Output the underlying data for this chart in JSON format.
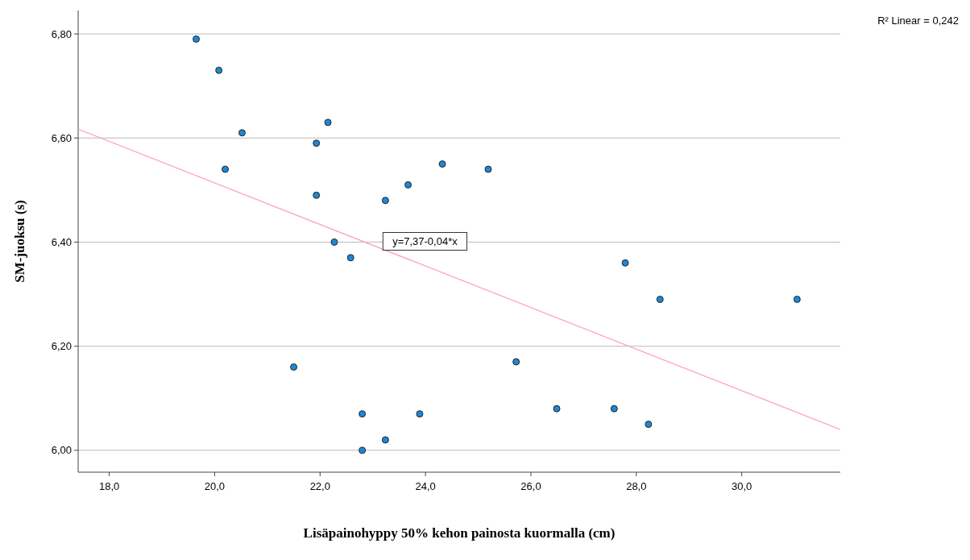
{
  "chart_data": {
    "type": "scatter",
    "xlabel": "Lisäpainohyppy 50% kehon painosta kuormalla (cm)",
    "ylabel": "SM-juoksu (s)",
    "xlim": [
      17.41,
      31.87
    ],
    "ylim": [
      5.958,
      6.845
    ],
    "xticks": [
      {
        "value": 18,
        "label": "18,0"
      },
      {
        "value": 20,
        "label": "20,0"
      },
      {
        "value": 22,
        "label": "22,0"
      },
      {
        "value": 24,
        "label": "24,0"
      },
      {
        "value": 26,
        "label": "26,0"
      },
      {
        "value": 28,
        "label": "28,0"
      },
      {
        "value": 30,
        "label": "30,0"
      }
    ],
    "yticks": [
      {
        "value": 6.0,
        "label": "6,00"
      },
      {
        "value": 6.2,
        "label": "6,20"
      },
      {
        "value": 6.4,
        "label": "6,40"
      },
      {
        "value": 6.6,
        "label": "6,60"
      },
      {
        "value": 6.8,
        "label": "6,80"
      }
    ],
    "grid": "y",
    "series": [
      {
        "marker": "circle",
        "color": "#1f87d6",
        "x": [
          19.65,
          20.08,
          20.52,
          20.2,
          22.15,
          21.93,
          21.93,
          22.27,
          22.58,
          21.5,
          22.8,
          22.8,
          23.24,
          23.24,
          23.67,
          24.32,
          25.19,
          23.89,
          25.72,
          26.49,
          27.58,
          27.79,
          28.23,
          28.45,
          31.05
        ],
        "values": [
          6.79,
          6.73,
          6.61,
          6.54,
          6.63,
          6.59,
          6.49,
          6.4,
          6.37,
          6.16,
          6.07,
          6.0,
          6.02,
          6.48,
          6.51,
          6.55,
          6.54,
          6.07,
          6.17,
          6.08,
          6.08,
          6.36,
          6.05,
          6.29,
          6.29
        ]
      },
      {
        "type": "line",
        "color": "#ff99bb",
        "x": [
          17.41,
          31.87
        ],
        "values": [
          6.617,
          6.04
        ]
      }
    ],
    "annotations": [
      "y=7,37-0,04*x",
      "R² Linear = 0,242"
    ]
  }
}
